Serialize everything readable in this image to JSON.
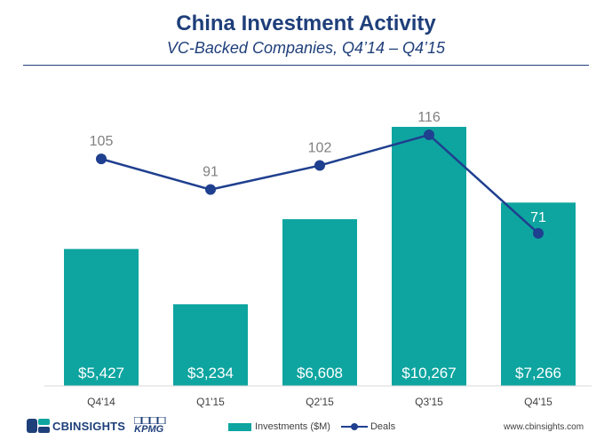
{
  "header": {
    "title": "China Investment Activity",
    "subtitle": "VC-Backed Companies, Q4’14 – Q4’15"
  },
  "chart_data": {
    "type": "bar",
    "title": "China Investment Activity",
    "subtitle": "VC-Backed Companies, Q4’14 – Q4’15",
    "categories": [
      "Q4'14",
      "Q1'15",
      "Q2'15",
      "Q3'15",
      "Q4'15"
    ],
    "series": [
      {
        "name": "Investments ($M)",
        "type": "bar",
        "values": [
          5427,
          3234,
          6608,
          10267,
          7266
        ],
        "labels": [
          "$5,427",
          "$3,234",
          "$6,608",
          "$10,267",
          "$7,266"
        ],
        "color": "#0ea5a0"
      },
      {
        "name": "Deals",
        "type": "line",
        "values": [
          105,
          91,
          102,
          116,
          71
        ],
        "color": "#1f3f8f"
      }
    ],
    "ylim_bars": [
      0,
      10800
    ],
    "ylim_line": [
      0,
      160
    ],
    "grid": false,
    "legend_position": "bottom-center"
  },
  "footer": {
    "brand": "CBINSIGHTS",
    "partner": "KPMG",
    "website": "www.cbinsights.com"
  },
  "colors": {
    "title": "#1f3f7a",
    "bar": "#0ea5a0",
    "line": "#1f3f8f",
    "axis_text": "#404040",
    "deal_label": "#808080"
  }
}
